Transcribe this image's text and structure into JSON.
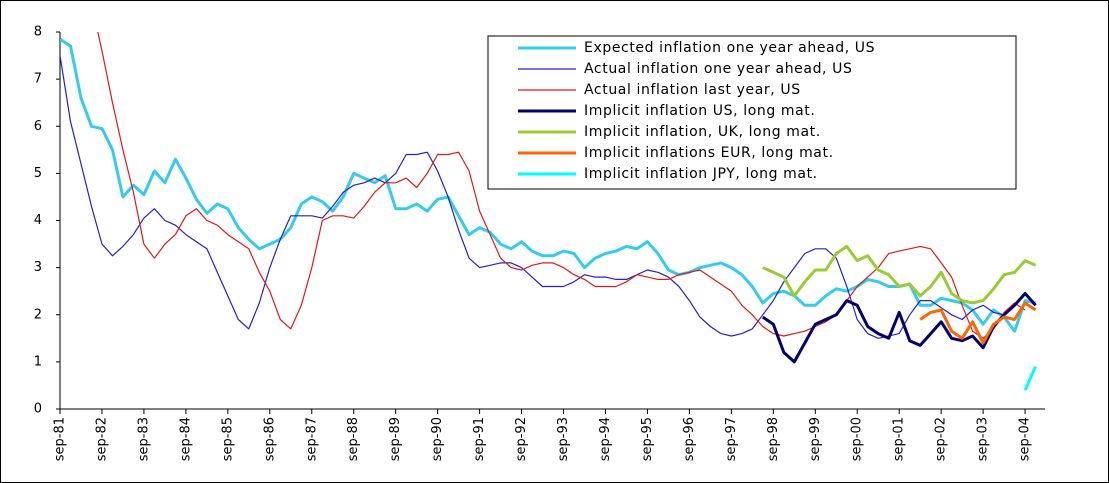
{
  "chart_data": {
    "type": "line",
    "legend": "upper right",
    "categories": [
      "sep-81",
      null,
      null,
      null,
      "sep-82",
      null,
      null,
      null,
      "sep-83",
      null,
      null,
      null,
      "sep-84",
      null,
      null,
      null,
      "sep-85",
      null,
      null,
      null,
      "sep-86",
      null,
      null,
      null,
      "sep-87",
      null,
      null,
      null,
      "sep-88",
      null,
      null,
      null,
      "sep-89",
      null,
      null,
      null,
      "sep-90",
      null,
      null,
      null,
      "sep-91",
      null,
      null,
      null,
      "sep-92",
      null,
      null,
      null,
      "sep-93",
      null,
      null,
      null,
      "sep-94",
      null,
      null,
      null,
      "sep-95",
      null,
      null,
      null,
      "sep-96",
      null,
      null,
      null,
      "sep-97",
      null,
      null,
      null,
      "sep-98",
      null,
      null,
      null,
      "sep-99",
      null,
      null,
      null,
      "sep-00",
      null,
      null,
      null,
      "sep-01",
      null,
      null,
      null,
      "sep-02",
      null,
      null,
      null,
      "sep-03",
      null,
      null,
      null,
      "sep-04",
      null
    ],
    "ylim": [
      0,
      8
    ],
    "yticks": [
      0,
      1,
      2,
      3,
      4,
      5,
      6,
      7,
      8
    ],
    "series": [
      {
        "name": "Expected inflation one year ahead, US",
        "color": "#33ccee",
        "width": 3,
        "values": [
          7.85,
          7.7,
          6.6,
          6.0,
          5.95,
          5.5,
          4.5,
          4.75,
          4.55,
          5.05,
          4.8,
          5.3,
          4.9,
          4.45,
          4.15,
          4.35,
          4.25,
          3.85,
          3.6,
          3.4,
          3.5,
          3.6,
          3.85,
          4.35,
          4.5,
          4.4,
          4.2,
          4.5,
          5.0,
          4.9,
          4.8,
          4.95,
          4.25,
          4.25,
          4.35,
          4.2,
          4.45,
          4.5,
          4.1,
          3.7,
          3.85,
          3.75,
          3.5,
          3.4,
          3.55,
          3.35,
          3.25,
          3.25,
          3.35,
          3.3,
          3.0,
          3.2,
          3.3,
          3.35,
          3.45,
          3.4,
          3.55,
          3.3,
          2.95,
          2.85,
          2.9,
          3.0,
          3.05,
          3.1,
          3.0,
          2.85,
          2.6,
          2.25,
          2.45,
          2.5,
          2.4,
          2.2,
          2.2,
          2.4,
          2.55,
          2.5,
          2.6,
          2.75,
          2.7,
          2.6,
          2.6,
          2.65,
          2.2,
          2.2,
          2.35,
          2.3,
          2.25,
          2.1,
          1.8,
          2.1,
          1.95,
          1.65,
          2.3,
          2.25
        ]
      },
      {
        "name": "Actual inflation one year ahead, US",
        "color": "#2222cc",
        "width": 1.2,
        "values": [
          7.5,
          6.1,
          5.2,
          4.3,
          3.5,
          3.25,
          3.45,
          3.7,
          4.05,
          4.25,
          4.0,
          3.9,
          3.7,
          3.55,
          3.4,
          2.9,
          2.4,
          1.9,
          1.7,
          2.25,
          3.0,
          3.6,
          4.1,
          4.1,
          4.1,
          4.05,
          4.3,
          4.6,
          4.75,
          4.8,
          4.9,
          4.8,
          5.0,
          5.4,
          5.4,
          5.45,
          5.05,
          4.5,
          3.8,
          3.2,
          3.0,
          3.05,
          3.1,
          3.1,
          3.0,
          2.8,
          2.6,
          2.6,
          2.6,
          2.7,
          2.85,
          2.8,
          2.8,
          2.75,
          2.75,
          2.85,
          2.95,
          2.9,
          2.8,
          2.6,
          2.3,
          1.95,
          1.75,
          1.6,
          1.55,
          1.6,
          1.7,
          2.0,
          2.3,
          2.7,
          3.0,
          3.3,
          3.4,
          3.4,
          3.2,
          2.6,
          1.9,
          1.6,
          1.5,
          1.55,
          1.6,
          2.0,
          2.3,
          2.3,
          2.15,
          2.0,
          1.9,
          2.1,
          2.2,
          2.05,
          2.0,
          2.25,
          null,
          null
        ]
      },
      {
        "name": "Actual inflation last year, US",
        "color": "#e01818",
        "width": 1.2,
        "values": [
          null,
          null,
          null,
          8.6,
          7.6,
          6.5,
          5.5,
          4.6,
          3.5,
          3.2,
          3.5,
          3.7,
          4.1,
          4.25,
          4.0,
          3.9,
          3.7,
          3.55,
          3.4,
          2.9,
          2.5,
          1.9,
          1.7,
          2.2,
          3.0,
          4.0,
          4.1,
          4.1,
          4.05,
          4.3,
          4.6,
          4.8,
          4.8,
          4.9,
          4.7,
          5.0,
          5.4,
          5.4,
          5.45,
          5.05,
          4.2,
          3.7,
          3.2,
          3.0,
          2.95,
          3.05,
          3.1,
          3.1,
          3.0,
          2.85,
          2.75,
          2.6,
          2.6,
          2.6,
          2.7,
          2.85,
          2.8,
          2.75,
          2.75,
          2.85,
          2.9,
          2.95,
          2.8,
          2.65,
          2.5,
          2.2,
          2.0,
          1.75,
          1.6,
          1.55,
          1.6,
          1.65,
          1.75,
          1.85,
          2.0,
          2.3,
          2.6,
          2.8,
          3.0,
          3.3,
          3.35,
          3.4,
          3.45,
          3.4,
          3.1,
          2.8,
          2.2,
          1.65,
          1.5,
          1.7,
          2.05,
          2.25,
          2.1,
          null
        ]
      },
      {
        "name": "Implicit inflation US, long mat.",
        "color": "#000070",
        "width": 3,
        "values": [
          null,
          null,
          null,
          null,
          null,
          null,
          null,
          null,
          null,
          null,
          null,
          null,
          null,
          null,
          null,
          null,
          null,
          null,
          null,
          null,
          null,
          null,
          null,
          null,
          null,
          null,
          null,
          null,
          null,
          null,
          null,
          null,
          null,
          null,
          null,
          null,
          null,
          null,
          null,
          null,
          null,
          null,
          null,
          null,
          null,
          null,
          null,
          null,
          null,
          null,
          null,
          null,
          null,
          null,
          null,
          null,
          null,
          null,
          null,
          null,
          null,
          null,
          null,
          null,
          null,
          null,
          null,
          1.95,
          1.8,
          1.2,
          1.0,
          1.4,
          1.8,
          1.9,
          2.0,
          2.3,
          2.2,
          1.75,
          1.6,
          1.5,
          2.05,
          1.45,
          1.35,
          1.6,
          1.85,
          1.5,
          1.45,
          1.55,
          1.3,
          1.75,
          2.0,
          2.2,
          2.45,
          2.2
        ]
      },
      {
        "name": "Implicit inflation, UK, long mat.",
        "color": "#99cc33",
        "width": 3,
        "values": [
          null,
          null,
          null,
          null,
          null,
          null,
          null,
          null,
          null,
          null,
          null,
          null,
          null,
          null,
          null,
          null,
          null,
          null,
          null,
          null,
          null,
          null,
          null,
          null,
          null,
          null,
          null,
          null,
          null,
          null,
          null,
          null,
          null,
          null,
          null,
          null,
          null,
          null,
          null,
          null,
          null,
          null,
          null,
          null,
          null,
          null,
          null,
          null,
          null,
          null,
          null,
          null,
          null,
          null,
          null,
          null,
          null,
          null,
          null,
          null,
          null,
          null,
          null,
          null,
          null,
          null,
          null,
          3.0,
          2.9,
          2.8,
          2.4,
          2.7,
          2.95,
          2.95,
          3.3,
          3.45,
          3.15,
          3.25,
          2.95,
          2.85,
          2.6,
          2.65,
          2.4,
          2.6,
          2.9,
          2.45,
          2.3,
          2.25,
          2.3,
          2.55,
          2.85,
          2.9,
          3.15,
          3.05
        ]
      },
      {
        "name": "Implicit inflations EUR, long mat.",
        "color": "#ff6600",
        "width": 3,
        "values": [
          null,
          null,
          null,
          null,
          null,
          null,
          null,
          null,
          null,
          null,
          null,
          null,
          null,
          null,
          null,
          null,
          null,
          null,
          null,
          null,
          null,
          null,
          null,
          null,
          null,
          null,
          null,
          null,
          null,
          null,
          null,
          null,
          null,
          null,
          null,
          null,
          null,
          null,
          null,
          null,
          null,
          null,
          null,
          null,
          null,
          null,
          null,
          null,
          null,
          null,
          null,
          null,
          null,
          null,
          null,
          null,
          null,
          null,
          null,
          null,
          null,
          null,
          null,
          null,
          null,
          null,
          null,
          null,
          null,
          null,
          null,
          null,
          null,
          null,
          null,
          null,
          null,
          null,
          null,
          null,
          null,
          null,
          1.9,
          2.05,
          2.1,
          1.65,
          1.5,
          1.85,
          1.4,
          1.8,
          1.95,
          1.9,
          2.25,
          2.1
        ]
      },
      {
        "name": "Implicit inflation JPY, long mat.",
        "color": "#00ffff",
        "width": 3,
        "values": [
          null,
          null,
          null,
          null,
          null,
          null,
          null,
          null,
          null,
          null,
          null,
          null,
          null,
          null,
          null,
          null,
          null,
          null,
          null,
          null,
          null,
          null,
          null,
          null,
          null,
          null,
          null,
          null,
          null,
          null,
          null,
          null,
          null,
          null,
          null,
          null,
          null,
          null,
          null,
          null,
          null,
          null,
          null,
          null,
          null,
          null,
          null,
          null,
          null,
          null,
          null,
          null,
          null,
          null,
          null,
          null,
          null,
          null,
          null,
          null,
          null,
          null,
          null,
          null,
          null,
          null,
          null,
          null,
          null,
          null,
          null,
          null,
          null,
          null,
          null,
          null,
          null,
          null,
          null,
          null,
          null,
          null,
          null,
          null,
          null,
          null,
          null,
          null,
          null,
          null,
          null,
          null,
          0.4,
          0.9
        ]
      }
    ]
  }
}
